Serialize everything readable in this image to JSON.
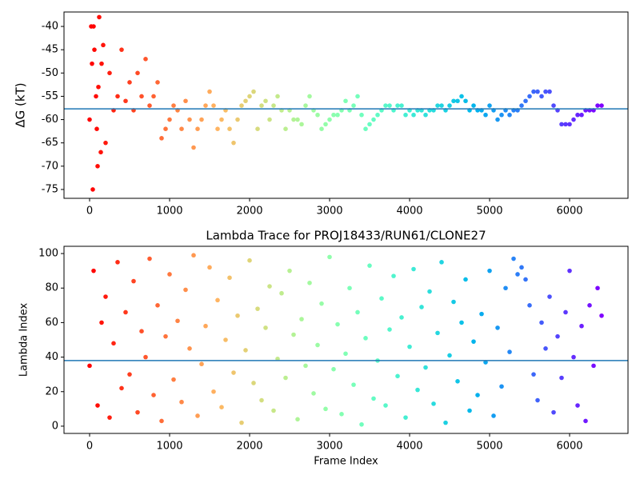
{
  "chart_data": [
    {
      "type": "scatter",
      "ylabel": "ΔG (kT)",
      "colormap": "rainbow_r",
      "hline": -57.7,
      "hline_color": "#1f77b4",
      "xlim": [
        -320,
        6730
      ],
      "ylim": [
        -76.9,
        -36.9
      ],
      "xticks": [
        0,
        1000,
        2000,
        3000,
        4000,
        5000,
        6000
      ],
      "yticks": [
        -75,
        -70,
        -65,
        -60,
        -55,
        -50,
        -45,
        -40
      ],
      "x": [
        0,
        50,
        100,
        150,
        200,
        250,
        300,
        350,
        400,
        450,
        500,
        550,
        600,
        650,
        700,
        750,
        800,
        850,
        900,
        950,
        1000,
        1050,
        1100,
        1150,
        1200,
        1250,
        1300,
        1350,
        1400,
        1450,
        1500,
        1550,
        1600,
        1650,
        1700,
        1750,
        1800,
        1850,
        1900,
        1950,
        2000,
        2050,
        2100,
        2150,
        2200,
        2250,
        2300,
        2350,
        2400,
        2450,
        2500,
        2550,
        2600,
        2650,
        2700,
        2750,
        2800,
        2850,
        2900,
        2950,
        3000,
        3050,
        3100,
        3150,
        3200,
        3250,
        3300,
        3350,
        3400,
        3450,
        3500,
        3550,
        3600,
        3650,
        3700,
        3750,
        3800,
        3850,
        3900,
        3950,
        4000,
        4050,
        4100,
        4150,
        4200,
        4250,
        4300,
        4350,
        4400,
        4450,
        4500,
        4550,
        4600,
        4650,
        4700,
        4750,
        4800,
        4850,
        4900,
        4950,
        5000,
        5050,
        5100,
        5150,
        5200,
        5250,
        5300,
        5350,
        5400,
        5450,
        5500,
        5550,
        5600,
        5650,
        5700,
        5750,
        5800,
        5850,
        5900,
        5950,
        6000,
        6050,
        6100,
        6150,
        6200,
        6250,
        6300,
        6350,
        6400,
        20,
        40,
        60,
        80,
        90,
        120,
        140,
        170,
        30,
        110
      ],
      "y": [
        -60,
        -40,
        -70,
        -48,
        -65,
        -50,
        -58,
        -55,
        -45,
        -56,
        -52,
        -58,
        -50,
        -55,
        -47,
        -57,
        -55,
        -52,
        -64,
        -62,
        -60,
        -57,
        -58,
        -62,
        -56,
        -60,
        -66,
        -62,
        -60,
        -57,
        -54,
        -57,
        -62,
        -60,
        -58,
        -62,
        -65,
        -60,
        -57,
        -56,
        -55,
        -54,
        -62,
        -57,
        -56,
        -60,
        -57,
        -55,
        -58,
        -62,
        -58,
        -60,
        -60,
        -61,
        -57,
        -55,
        -58,
        -59,
        -62,
        -61,
        -60,
        -59,
        -59,
        -58,
        -56,
        -58,
        -57,
        -55,
        -59,
        -62,
        -61,
        -60,
        -59,
        -58,
        -57,
        -57,
        -58,
        -57,
        -57,
        -59,
        -58,
        -59,
        -58,
        -58,
        -59,
        -58,
        -58,
        -57,
        -57,
        -58,
        -57,
        -56,
        -56,
        -55,
        -56,
        -58,
        -57,
        -58,
        -58,
        -59,
        -57,
        -58,
        -60,
        -59,
        -58,
        -59,
        -58,
        -58,
        -57,
        -56,
        -55,
        -54,
        -54,
        -55,
        -54,
        -54,
        -57,
        -58,
        -61,
        -61,
        -61,
        -60,
        -59,
        -59,
        -58,
        -58,
        -58,
        -57,
        -57,
        -40,
        -75,
        -45,
        -55,
        -62,
        -38,
        -67,
        -44,
        -48,
        -53
      ]
    },
    {
      "type": "scatter",
      "title": "Lambda Trace for PROJ18433/RUN61/CLONE27",
      "xlabel": "Frame Index",
      "ylabel": "Lambda Index",
      "colormap": "rainbow_r",
      "hline": 38,
      "hline_color": "#1f77b4",
      "xlim": [
        -320,
        6730
      ],
      "ylim": [
        -4.2,
        104.2
      ],
      "xticks": [
        0,
        1000,
        2000,
        3000,
        4000,
        5000,
        6000
      ],
      "yticks": [
        0,
        20,
        40,
        60,
        80,
        100
      ],
      "x": [
        0,
        50,
        100,
        150,
        200,
        250,
        300,
        350,
        400,
        450,
        500,
        550,
        600,
        650,
        700,
        750,
        800,
        850,
        900,
        950,
        1000,
        1050,
        1100,
        1150,
        1200,
        1250,
        1300,
        1350,
        1400,
        1450,
        1500,
        1550,
        1600,
        1650,
        1700,
        1750,
        1800,
        1850,
        1900,
        1950,
        2000,
        2050,
        2100,
        2150,
        2200,
        2250,
        2300,
        2350,
        2400,
        2450,
        2500,
        2550,
        2600,
        2650,
        2700,
        2750,
        2800,
        2850,
        2900,
        2950,
        3000,
        3050,
        3100,
        3150,
        3200,
        3250,
        3300,
        3350,
        3400,
        3450,
        3500,
        3550,
        3600,
        3650,
        3700,
        3750,
        3800,
        3850,
        3900,
        3950,
        4000,
        4050,
        4100,
        4150,
        4200,
        4250,
        4300,
        4350,
        4400,
        4450,
        4500,
        4550,
        4600,
        4650,
        4700,
        4750,
        4800,
        4850,
        4900,
        4950,
        5000,
        5050,
        5100,
        5150,
        5200,
        5250,
        5300,
        5350,
        5400,
        5450,
        5500,
        5550,
        5600,
        5650,
        5700,
        5750,
        5800,
        5850,
        5900,
        5950,
        6000,
        6050,
        6100,
        6150,
        6200,
        6250,
        6300,
        6350,
        6400
      ],
      "y": [
        35,
        90,
        12,
        60,
        75,
        5,
        48,
        95,
        22,
        66,
        30,
        84,
        8,
        55,
        40,
        97,
        18,
        70,
        3,
        52,
        88,
        27,
        61,
        14,
        79,
        45,
        99,
        6,
        36,
        58,
        92,
        20,
        73,
        11,
        50,
        86,
        31,
        64,
        2,
        44,
        96,
        25,
        68,
        15,
        57,
        81,
        9,
        39,
        77,
        28,
        90,
        53,
        4,
        62,
        35,
        83,
        19,
        47,
        71,
        10,
        98,
        33,
        59,
        7,
        42,
        80,
        24,
        66,
        1,
        51,
        93,
        16,
        38,
        74,
        12,
        56,
        87,
        29,
        63,
        5,
        46,
        91,
        21,
        69,
        34,
        78,
        13,
        54,
        95,
        2,
        41,
        72,
        26,
        60,
        85,
        9,
        49,
        18,
        65,
        37,
        90,
        6,
        57,
        23,
        80,
        43,
        97,
        88,
        92,
        85,
        70,
        30,
        15,
        60,
        45,
        75,
        8,
        52,
        28,
        66,
        90,
        40,
        12,
        58,
        3,
        70,
        35,
        80,
        64
      ]
    }
  ]
}
